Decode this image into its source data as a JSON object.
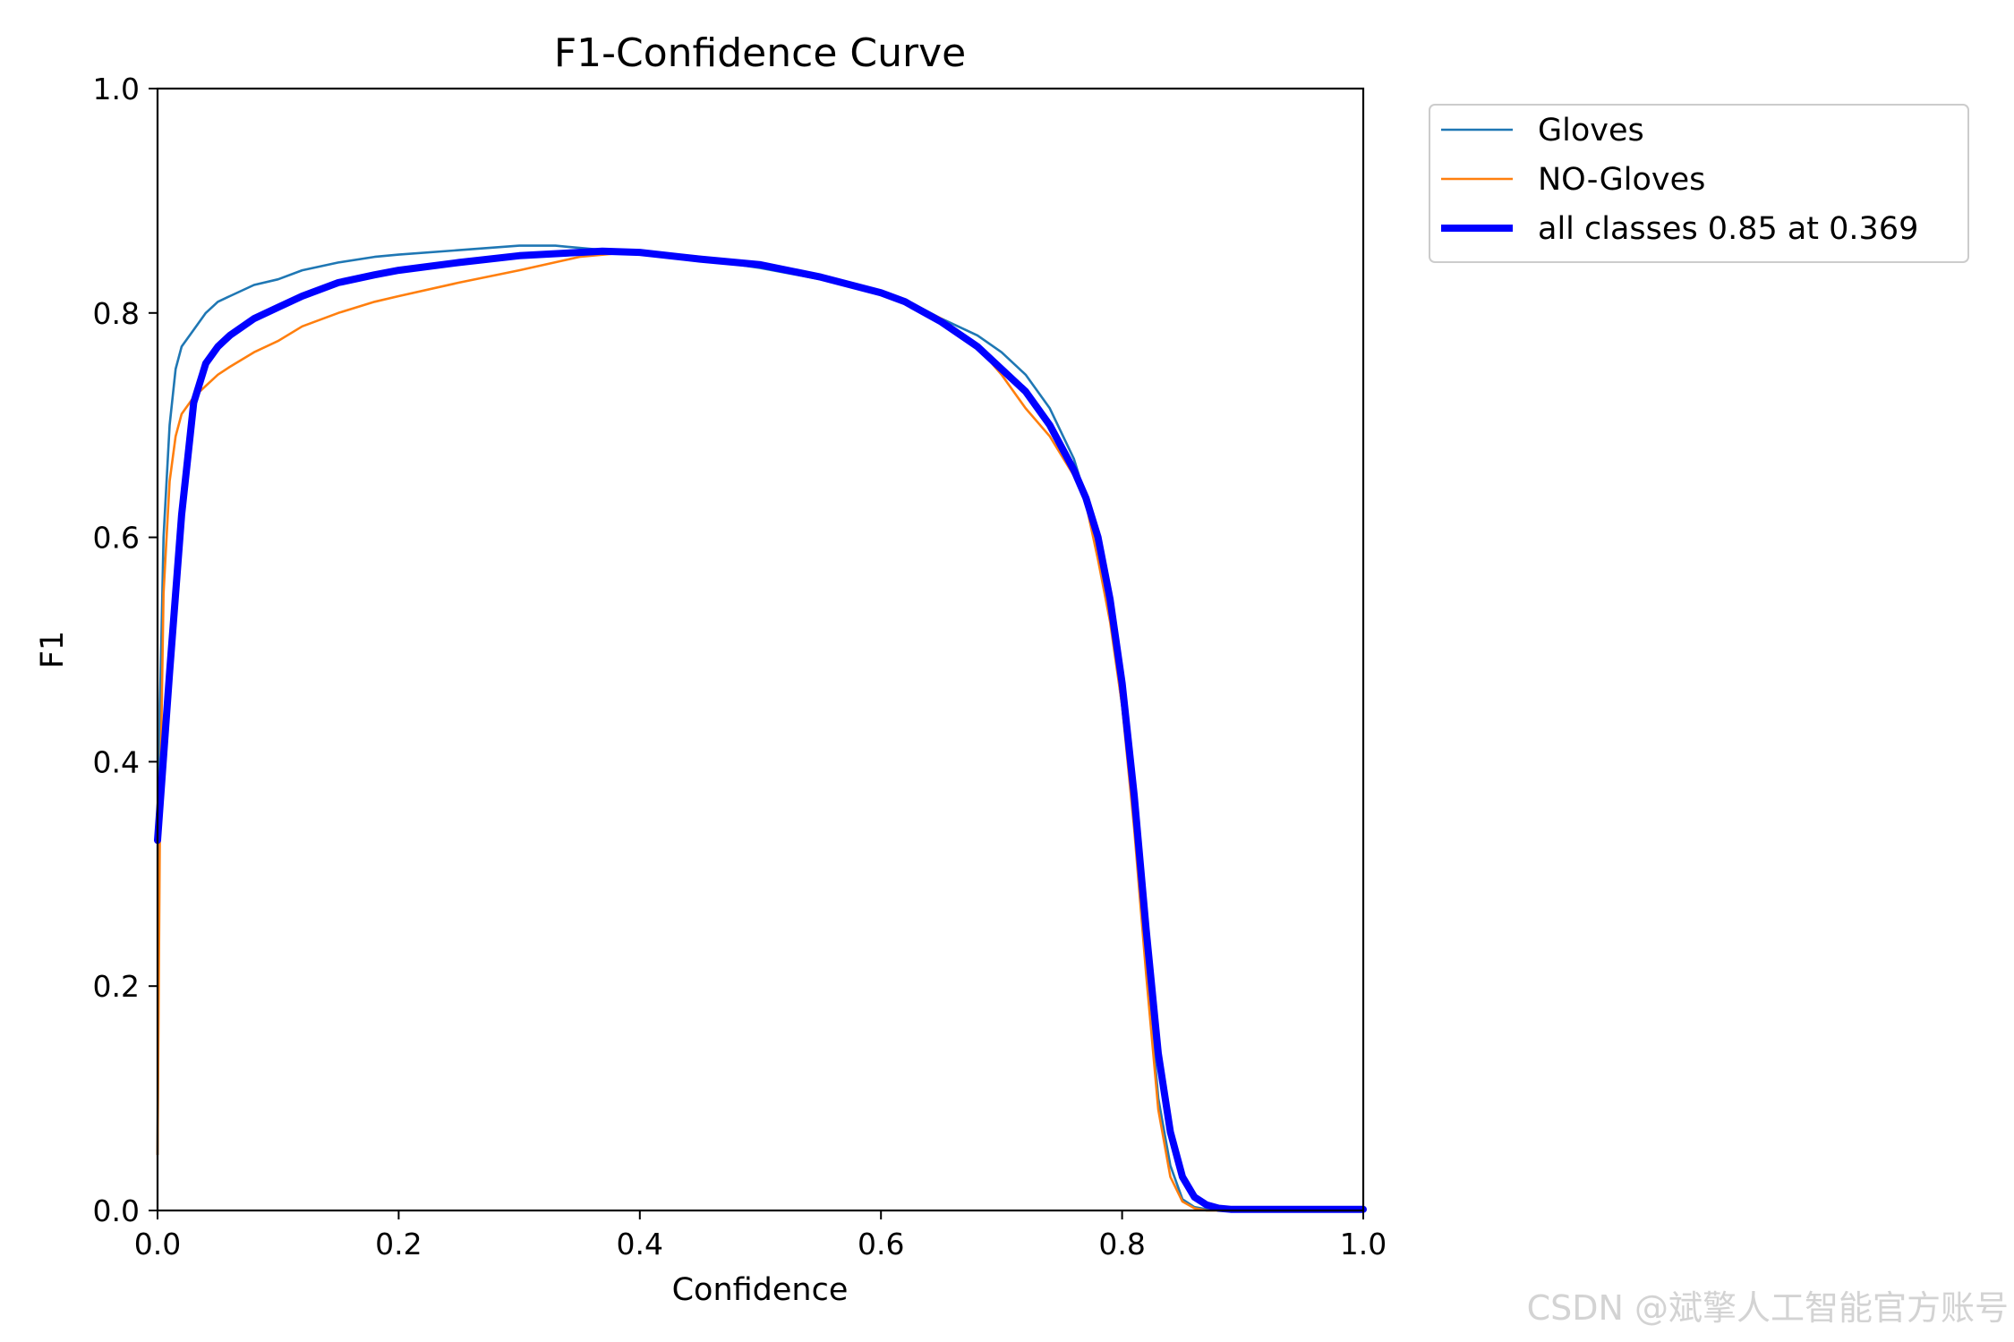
{
  "chart_data": {
    "type": "line",
    "title": "F1-Confidence Curve",
    "xlabel": "Confidence",
    "ylabel": "F1",
    "xlim": [
      0.0,
      1.0
    ],
    "ylim": [
      0.0,
      1.0
    ],
    "x_ticks": [
      "0.0",
      "0.2",
      "0.4",
      "0.6",
      "0.8",
      "1.0"
    ],
    "y_ticks": [
      "0.0",
      "0.2",
      "0.4",
      "0.6",
      "0.8",
      "1.0"
    ],
    "grid": false,
    "legend_position": "outside-top-right",
    "series": [
      {
        "name": "Gloves",
        "color": "#1f77b4",
        "x": [
          0.0,
          0.002,
          0.005,
          0.01,
          0.015,
          0.02,
          0.03,
          0.04,
          0.05,
          0.06,
          0.08,
          0.1,
          0.12,
          0.15,
          0.18,
          0.2,
          0.25,
          0.3,
          0.33,
          0.35,
          0.38,
          0.4,
          0.45,
          0.5,
          0.55,
          0.6,
          0.62,
          0.65,
          0.68,
          0.7,
          0.72,
          0.74,
          0.76,
          0.77,
          0.78,
          0.79,
          0.8,
          0.81,
          0.82,
          0.83,
          0.84,
          0.85,
          0.86,
          0.87,
          0.88,
          0.9,
          0.95,
          1.0
        ],
        "y": [
          0.05,
          0.45,
          0.6,
          0.7,
          0.75,
          0.77,
          0.785,
          0.8,
          0.81,
          0.815,
          0.825,
          0.83,
          0.838,
          0.845,
          0.85,
          0.852,
          0.856,
          0.86,
          0.86,
          0.858,
          0.855,
          0.853,
          0.848,
          0.84,
          0.83,
          0.818,
          0.812,
          0.795,
          0.78,
          0.765,
          0.745,
          0.715,
          0.67,
          0.635,
          0.59,
          0.53,
          0.45,
          0.35,
          0.22,
          0.1,
          0.04,
          0.01,
          0.003,
          0.001,
          0.0,
          0.0,
          0.0,
          0.0
        ]
      },
      {
        "name": "NO-Gloves",
        "color": "#ff7f0e",
        "x": [
          0.0,
          0.002,
          0.005,
          0.01,
          0.015,
          0.02,
          0.03,
          0.04,
          0.05,
          0.06,
          0.08,
          0.1,
          0.12,
          0.15,
          0.18,
          0.2,
          0.25,
          0.3,
          0.35,
          0.4,
          0.45,
          0.5,
          0.55,
          0.6,
          0.62,
          0.65,
          0.68,
          0.7,
          0.72,
          0.74,
          0.76,
          0.77,
          0.78,
          0.79,
          0.8,
          0.81,
          0.82,
          0.83,
          0.84,
          0.85,
          0.86,
          0.87,
          0.88,
          0.9,
          0.95,
          1.0
        ],
        "y": [
          0.05,
          0.35,
          0.55,
          0.65,
          0.69,
          0.71,
          0.725,
          0.735,
          0.745,
          0.752,
          0.765,
          0.775,
          0.788,
          0.8,
          0.81,
          0.815,
          0.827,
          0.838,
          0.85,
          0.855,
          0.85,
          0.843,
          0.832,
          0.818,
          0.81,
          0.795,
          0.77,
          0.745,
          0.715,
          0.69,
          0.655,
          0.63,
          0.58,
          0.525,
          0.45,
          0.34,
          0.21,
          0.09,
          0.03,
          0.008,
          0.002,
          0.0,
          0.0,
          0.0,
          0.0,
          0.0
        ]
      },
      {
        "name": "all classes 0.85 at 0.369",
        "color": "#0000ff",
        "x": [
          0.0,
          0.01,
          0.02,
          0.03,
          0.04,
          0.05,
          0.06,
          0.08,
          0.1,
          0.12,
          0.15,
          0.18,
          0.2,
          0.25,
          0.3,
          0.35,
          0.369,
          0.4,
          0.45,
          0.5,
          0.55,
          0.6,
          0.62,
          0.65,
          0.68,
          0.7,
          0.72,
          0.74,
          0.76,
          0.77,
          0.78,
          0.79,
          0.8,
          0.81,
          0.82,
          0.83,
          0.84,
          0.85,
          0.86,
          0.87,
          0.88,
          0.89,
          0.9,
          0.95,
          1.0
        ],
        "y": [
          0.33,
          0.48,
          0.62,
          0.72,
          0.755,
          0.77,
          0.78,
          0.795,
          0.805,
          0.815,
          0.827,
          0.834,
          0.838,
          0.845,
          0.851,
          0.854,
          0.855,
          0.854,
          0.848,
          0.843,
          0.832,
          0.818,
          0.81,
          0.792,
          0.77,
          0.75,
          0.73,
          0.7,
          0.66,
          0.635,
          0.6,
          0.545,
          0.47,
          0.37,
          0.25,
          0.14,
          0.07,
          0.03,
          0.012,
          0.005,
          0.002,
          0.001,
          0.001,
          0.001,
          0.001
        ]
      }
    ]
  },
  "watermark": "CSDN @斌擎人工智能官方账号"
}
